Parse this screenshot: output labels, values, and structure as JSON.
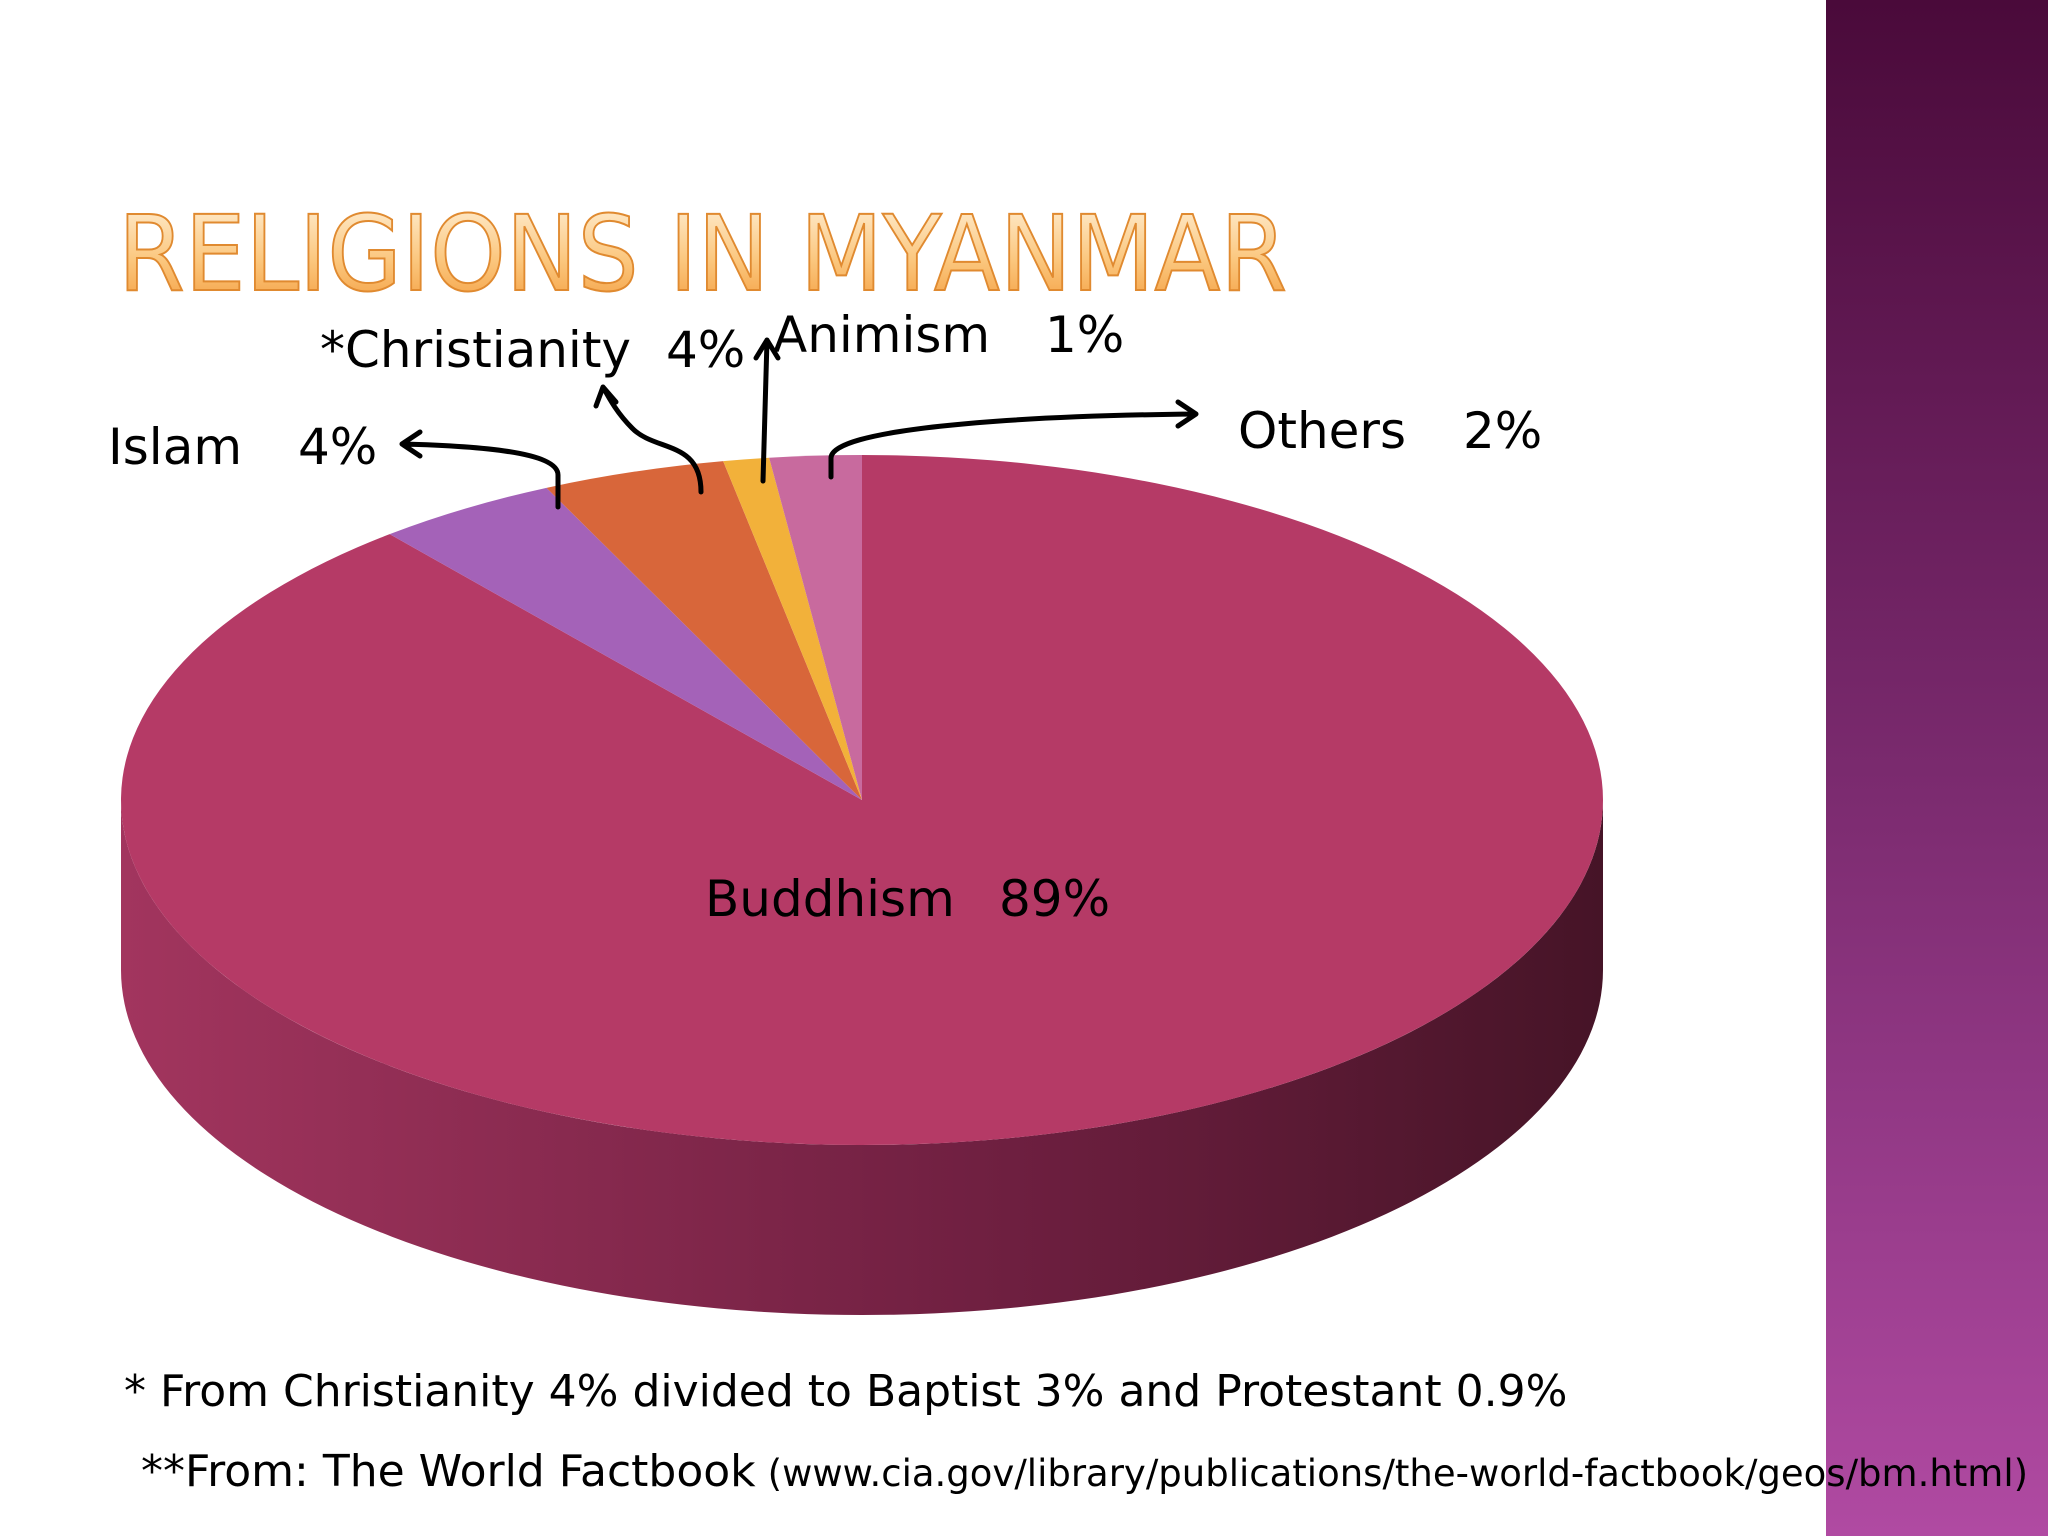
{
  "chart_data": {
    "type": "pie",
    "title": "RELIGIONS IN MYANMAR",
    "categories": [
      "Buddhism",
      "Islam",
      "*Christianity",
      "Animism",
      "Others"
    ],
    "values": [
      89,
      4,
      4,
      1,
      2
    ],
    "value_labels": [
      "89%",
      "4%",
      "4%",
      "1%",
      "2%"
    ],
    "colors": [
      "#b53a66",
      "#a462b8",
      "#d8663a",
      "#f2b13a",
      "#c86a9e"
    ],
    "note": "* From Christianity 4% divided to Baptist 3% and Protestant 0.9%",
    "source": "**From: The World Factbook",
    "source_url": "(www.cia.gov/library/publications/the-world-factbook/geos/bm.html)"
  }
}
